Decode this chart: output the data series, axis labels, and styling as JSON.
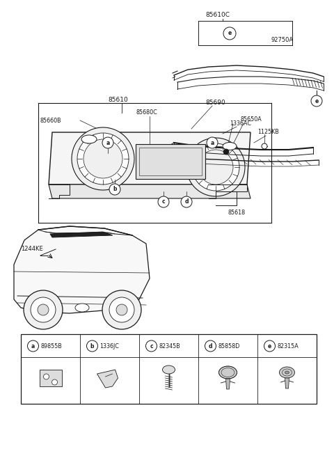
{
  "bg_color": "#ffffff",
  "line_color": "#1a1a1a",
  "fig_width": 4.8,
  "fig_height": 6.55,
  "dpi": 100,
  "legend_items": [
    {
      "letter": "a",
      "code": "89855B"
    },
    {
      "letter": "b",
      "code": "1336JC"
    },
    {
      "letter": "c",
      "code": "82345B"
    },
    {
      "letter": "d",
      "code": "85858D"
    },
    {
      "letter": "e",
      "code": "82315A"
    }
  ]
}
